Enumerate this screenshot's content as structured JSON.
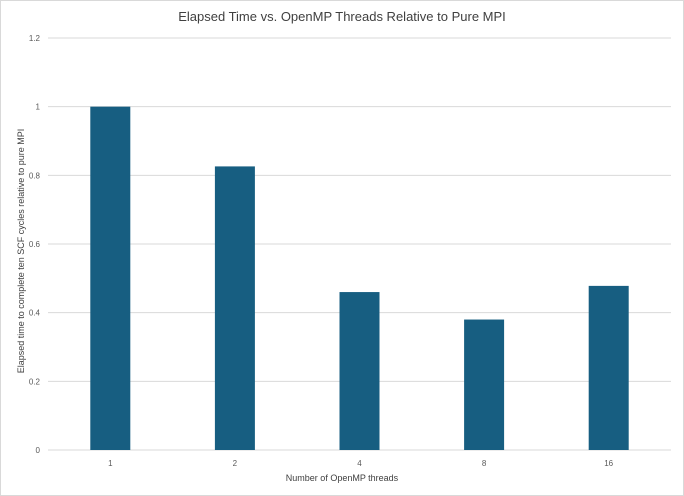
{
  "chart_data": {
    "type": "bar",
    "title": "Elapsed Time vs. OpenMP Threads Relative to Pure MPI",
    "xlabel": "Number of OpenMP threads",
    "ylabel": "Elapsed time to complete ten SCF cycles relative to pure MPI",
    "categories": [
      "1",
      "2",
      "4",
      "8",
      "16"
    ],
    "values": [
      1.0,
      0.826,
      0.46,
      0.38,
      0.478
    ],
    "ylim": [
      0,
      1.2
    ],
    "yticks": [
      "0",
      "0.2",
      "0.4",
      "0.6",
      "0.8",
      "1",
      "1.2"
    ],
    "grid": true,
    "legend": "none",
    "bar_color": "#175e81",
    "grid_color": "#d9d9d9"
  }
}
